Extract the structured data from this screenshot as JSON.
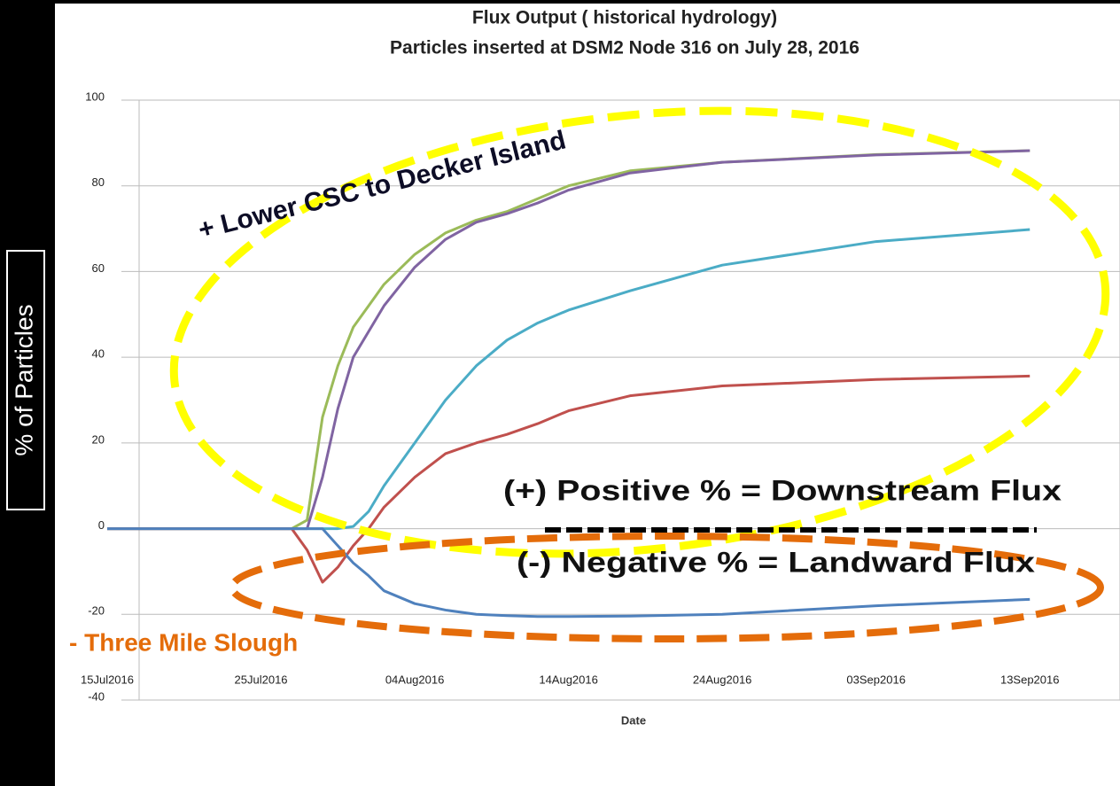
{
  "chart_data": {
    "type": "line",
    "title": "Flux Output ( historical hydrology)",
    "subtitle": "Particles inserted at DSM2 Node 316 on July 28, 2016",
    "xlabel": "Date",
    "ylabel": "% of Particles",
    "x": [
      "2016-07-15",
      "2016-07-27",
      "2016-07-28",
      "2016-07-29",
      "2016-07-30",
      "2016-07-31",
      "2016-08-01",
      "2016-08-02",
      "2016-08-04",
      "2016-08-06",
      "2016-08-08",
      "2016-08-10",
      "2016-08-12",
      "2016-08-14",
      "2016-08-18",
      "2016-08-24",
      "2016-09-03",
      "2016-09-13"
    ],
    "series": [
      {
        "color": "#9bbb59",
        "values": [
          0,
          0,
          2,
          26,
          38,
          47,
          52,
          57,
          64,
          69,
          72,
          74,
          77,
          80,
          83.5,
          85.5,
          87.3,
          88.2
        ]
      },
      {
        "color": "#8064a2",
        "values": [
          0,
          0,
          0,
          12,
          28,
          40,
          46,
          52,
          61,
          67.5,
          71.5,
          73.5,
          76,
          79,
          83,
          85.5,
          87.2,
          88.2
        ]
      },
      {
        "color": "#4bacc6",
        "values": [
          0,
          0,
          0,
          0,
          0,
          0.5,
          4,
          10,
          20,
          30,
          38,
          44,
          48,
          51,
          55.5,
          61.5,
          67,
          69.8
        ]
      },
      {
        "color": "#c0504d",
        "values": [
          0,
          0,
          -5,
          -12.5,
          -9,
          -4,
          0,
          5,
          12,
          17.5,
          20,
          22,
          24.5,
          27.5,
          31,
          33.3,
          34.8,
          35.6
        ]
      },
      {
        "color": "#4f81bd",
        "values": [
          0,
          0,
          0,
          0,
          -4,
          -8,
          -11,
          -14.5,
          -17.5,
          -19,
          -20,
          -20.3,
          -20.5,
          -20.5,
          -20.4,
          -20,
          -18,
          -16.5
        ]
      }
    ],
    "xlim": [
      "2016-07-15",
      "2016-09-18"
    ],
    "xticks": [
      {
        "value": "2016-07-15",
        "label": "15Jul2016"
      },
      {
        "value": "2016-07-25",
        "label": "25Jul2016"
      },
      {
        "value": "2016-08-04",
        "label": "04Aug2016"
      },
      {
        "value": "2016-08-14",
        "label": "14Aug2016"
      },
      {
        "value": "2016-08-24",
        "label": "24Aug2016"
      },
      {
        "value": "2016-09-03",
        "label": "03Sep2016"
      },
      {
        "value": "2016-09-13",
        "label": "13Sep2016"
      }
    ],
    "ylim": [
      -40,
      100
    ],
    "yticks": [
      -40,
      -20,
      0,
      20,
      40,
      60,
      80,
      100
    ],
    "grid": true,
    "annotations": [
      "+ Lower CSC to Decker Island",
      "- Three Mile Slough",
      "(+) Positive % = Downstream Flux",
      "(-) Negative % = Landward Flux"
    ]
  }
}
